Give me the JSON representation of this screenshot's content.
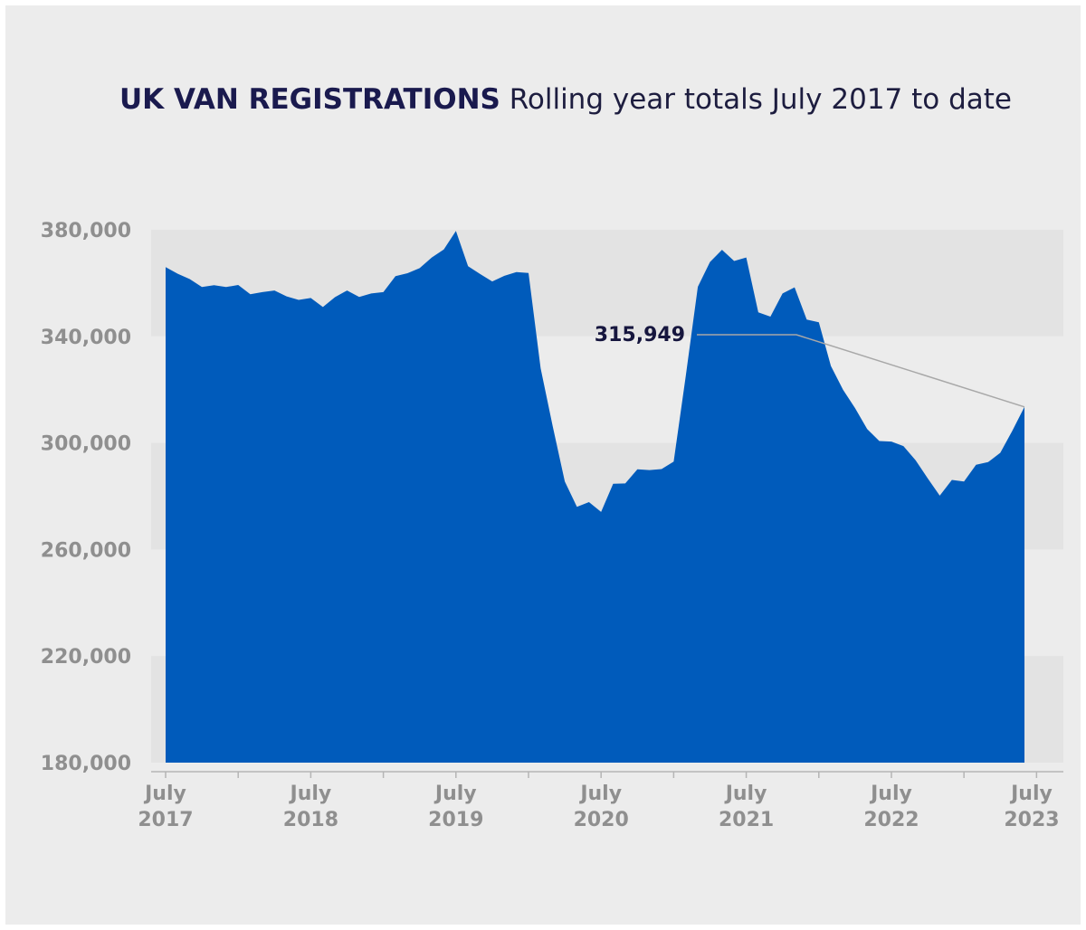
{
  "chart_data": {
    "type": "area",
    "title": "UK VAN REGISTRATIONS",
    "subtitle": "Rolling year totals July 2017 to date",
    "xlabel": "",
    "ylabel": "",
    "ylim": [
      180000,
      380000
    ],
    "yticks": [
      "380,000",
      "340,000",
      "300,000",
      "260,000",
      "220,000",
      "180,000"
    ],
    "ytick_values": [
      380000,
      340000,
      300000,
      260000,
      220000,
      180000
    ],
    "xticks": [
      {
        "month": "July",
        "year": "2017",
        "x": "2017-07"
      },
      {
        "month": "July",
        "year": "2018",
        "x": "2018-07"
      },
      {
        "month": "July",
        "year": "2019",
        "x": "2019-07"
      },
      {
        "month": "July",
        "year": "2020",
        "x": "2020-07"
      },
      {
        "month": "July",
        "year": "2021",
        "x": "2021-07"
      },
      {
        "month": "July",
        "year": "2022",
        "x": "2022-07"
      },
      {
        "month": "July",
        "year": "2023",
        "x": "2023-07"
      }
    ],
    "grid": "alternating horizontal bands",
    "fill_color": "#005bbb",
    "series": [
      {
        "x": [
          "2017-07",
          "2017-08",
          "2017-09",
          "2017-10",
          "2017-11",
          "2017-12",
          "2018-01",
          "2018-02",
          "2018-03",
          "2018-04",
          "2018-05",
          "2018-06",
          "2018-07",
          "2018-08",
          "2018-09",
          "2018-10",
          "2018-11",
          "2018-12",
          "2019-01",
          "2019-02",
          "2019-03",
          "2019-04",
          "2019-05",
          "2019-06",
          "2019-07",
          "2019-08",
          "2019-09",
          "2019-10",
          "2019-11",
          "2019-12",
          "2020-01",
          "2020-02",
          "2020-03",
          "2020-04",
          "2020-05",
          "2020-06",
          "2020-07",
          "2020-08",
          "2020-09",
          "2020-10",
          "2020-11",
          "2020-12",
          "2021-01",
          "2021-02",
          "2021-03",
          "2021-04",
          "2021-05",
          "2021-06",
          "2021-07",
          "2021-08",
          "2021-09",
          "2021-10",
          "2021-11",
          "2021-12",
          "2022-01",
          "2022-02",
          "2022-03",
          "2022-04",
          "2022-05",
          "2022-06",
          "2022-07",
          "2022-08",
          "2022-09",
          "2022-10",
          "2022-11",
          "2022-12",
          "2023-01",
          "2023-02",
          "2023-03",
          "2023-04",
          "2023-05",
          "2023-06"
        ],
        "values": [
          366000,
          363500,
          361500,
          358500,
          359200,
          358500,
          359300,
          355800,
          356600,
          357200,
          355000,
          353700,
          354400,
          351000,
          354700,
          357200,
          354800,
          356100,
          356600,
          362600,
          363700,
          365600,
          369600,
          372600,
          379600,
          366300,
          363400,
          360600,
          362700,
          364100,
          363800,
          328000,
          306300,
          285500,
          276000,
          277800,
          274100,
          284700,
          284800,
          290100,
          289800,
          290200,
          293000,
          325000,
          358600,
          367900,
          372500,
          368300,
          369600,
          349000,
          347400,
          356100,
          358400,
          346300,
          345300,
          328900,
          320000,
          313000,
          305200,
          300700,
          300500,
          298800,
          293500,
          286700,
          280200,
          286100,
          285500,
          291800,
          292800,
          296300,
          304600,
          313500
        ]
      }
    ],
    "annotation": {
      "label": "315,949",
      "x": "2023-06",
      "value": 313500
    }
  }
}
